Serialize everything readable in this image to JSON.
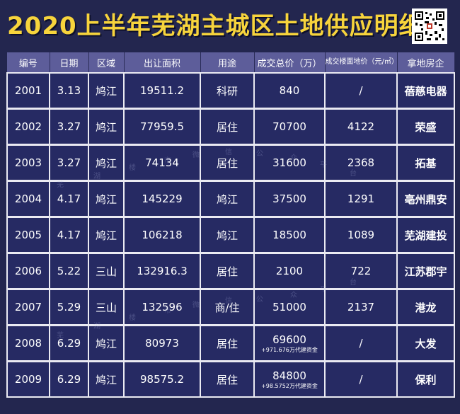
{
  "title": "2020上半年芜湖主城区土地供应明细",
  "headers": [
    "编号",
    "日期",
    "区域",
    "出让面积",
    "用途",
    "成交总价（万）",
    "成交楼面地价（元/㎡）",
    "拿地房企"
  ],
  "rows": [
    {
      "id": "2001",
      "date": "3.13",
      "area": "鸠江",
      "size": "19511.2",
      "use": "科研",
      "price": "840",
      "note": "",
      "unit": "/",
      "company": "蓓慈电器"
    },
    {
      "id": "2002",
      "date": "3.27",
      "area": "鸠江",
      "size": "77959.5",
      "use": "居住",
      "price": "70700",
      "note": "",
      "unit": "4122",
      "company": "荣盛"
    },
    {
      "id": "2003",
      "date": "3.27",
      "area": "鸠江",
      "size": "74134",
      "use": "居住",
      "price": "31600",
      "note": "",
      "unit": "2368",
      "company": "拓基"
    },
    {
      "id": "2004",
      "date": "4.17",
      "area": "鸠江",
      "size": "145229",
      "use": "鸠江",
      "price": "37500",
      "note": "",
      "unit": "1291",
      "company": "亳州鼎安"
    },
    {
      "id": "2005",
      "date": "4.17",
      "area": "鸠江",
      "size": "106218",
      "use": "鸠江",
      "price": "18500",
      "note": "",
      "unit": "1089",
      "company": "芜湖建投"
    },
    {
      "id": "2006",
      "date": "5.22",
      "area": "三山",
      "size": "132916.3",
      "use": "居住",
      "price": "2100",
      "note": "",
      "unit": "722",
      "company": "江苏郡宇"
    },
    {
      "id": "2007",
      "date": "5.29",
      "area": "三山",
      "size": "132596",
      "use": "商/住",
      "price": "51000",
      "note": "",
      "unit": "2137",
      "company": "港龙"
    },
    {
      "id": "2008",
      "date": "6.29",
      "area": "鸠江",
      "size": "80973",
      "use": "居住",
      "price": "69600",
      "note": "+971.676万代建资金",
      "unit": "/",
      "company": "大发"
    },
    {
      "id": "2009",
      "date": "6.29",
      "area": "鸠江",
      "size": "98575.2",
      "use": "居住",
      "price": "84800",
      "note": "+98.5752万代建资金",
      "unit": "/",
      "company": "保利"
    }
  ],
  "watermark": [
    "芜",
    "湖",
    "楼",
    "市",
    "微",
    "信",
    "公",
    "众",
    "平",
    "台"
  ],
  "icons": {
    "qr": "qr-code-icon"
  },
  "colors": {
    "title": "#f7d43c",
    "header_bg": "#5d5d9a",
    "row_bg": "#262a63",
    "company": "#f7d43c"
  }
}
